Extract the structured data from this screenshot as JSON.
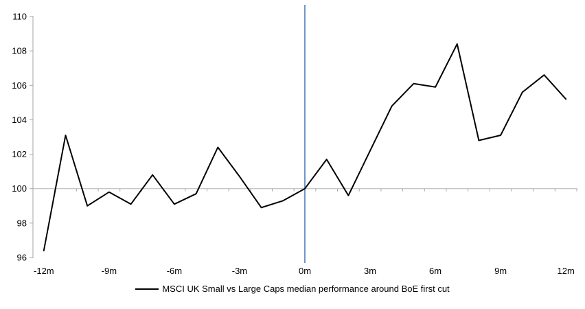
{
  "chart_data": {
    "type": "line",
    "title": "",
    "xlabel": "",
    "ylabel": "",
    "x": [
      -12,
      -11,
      -10,
      -9,
      -8,
      -7,
      -6,
      -5,
      -4,
      -3,
      -2,
      -1,
      0,
      1,
      2,
      3,
      4,
      5,
      6,
      7,
      8,
      9,
      10,
      11,
      12
    ],
    "series": [
      {
        "name": "MSCI UK Small vs Large Caps median performance around BoE first cut",
        "color": "#000000",
        "values": [
          96.4,
          103.1,
          99.0,
          99.8,
          99.1,
          100.8,
          99.1,
          99.7,
          102.4,
          100.7,
          98.9,
          99.3,
          100.0,
          101.7,
          99.6,
          102.2,
          104.8,
          106.1,
          105.9,
          108.4,
          102.8,
          103.1,
          105.6,
          106.6,
          105.2
        ]
      }
    ],
    "ylim": [
      96,
      110
    ],
    "y_ticks": [
      110,
      108,
      106,
      104,
      102,
      100,
      98,
      96
    ],
    "x_tick_values": [
      -12,
      -9,
      -6,
      -3,
      0,
      3,
      6,
      9,
      12
    ],
    "x_tick_labels": [
      "-12m",
      "-9m",
      "-6m",
      "-3m",
      "0m",
      "3m",
      "6m",
      "9m",
      "12m"
    ],
    "baseline_value": 100,
    "event_line": {
      "x": 0,
      "color": "#4a7ebb"
    },
    "grid": "baseline-only",
    "axis_color": "#a6a6a6",
    "baseline_color": "#b3b3b3",
    "legend": {
      "position": "bottom",
      "label": "MSCI UK Small vs Large Caps median performance around BoE first cut"
    }
  }
}
